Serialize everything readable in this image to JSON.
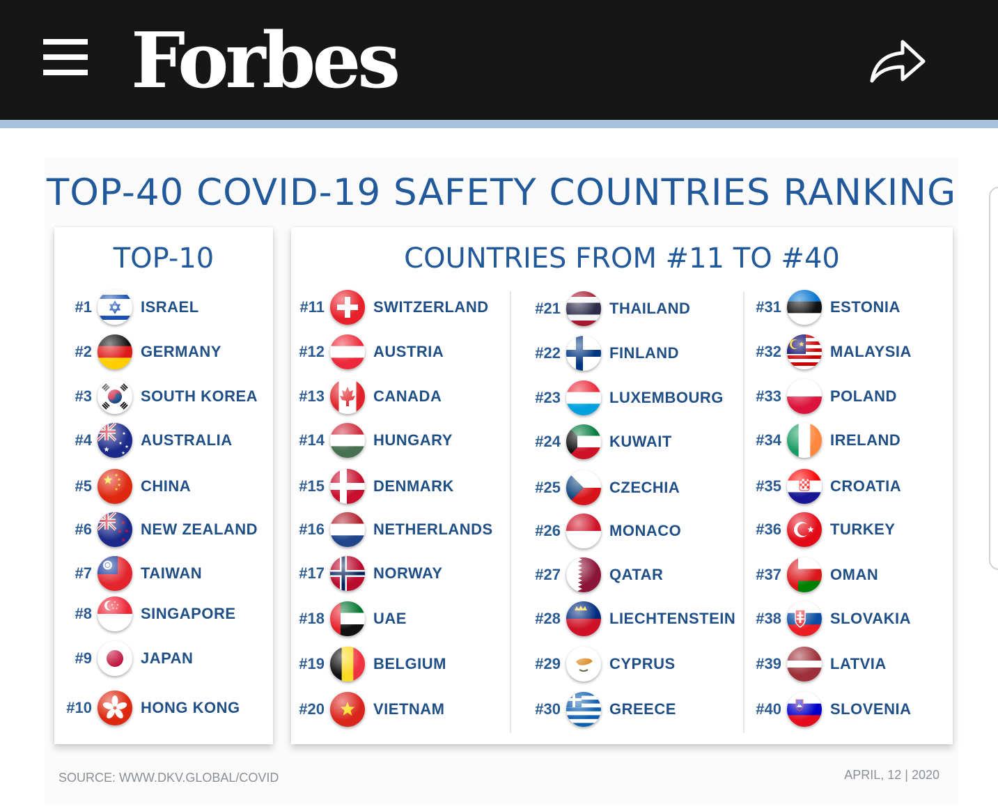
{
  "header": {
    "brand": "Forbes",
    "menu_icon": "hamburger-menu-icon",
    "share_icon": "share-arrow-icon",
    "bg_color": "#161616",
    "accent_color": "#a9c4da"
  },
  "infographic": {
    "title": "TOP-40 COVID-19 SAFETY COUNTRIES RANKING",
    "left_title": "TOP-10",
    "right_title": "COUNTRIES FROM #11 TO #40",
    "source": "SOURCE: WWW.DKV.GLOBAL/COVID",
    "date": "APRIL, 12 | 2020",
    "title_color": "#22599a"
  },
  "countries": [
    {
      "rank": "#1",
      "name": "ISRAEL",
      "flag": "israel"
    },
    {
      "rank": "#2",
      "name": "GERMANY",
      "flag": "germany"
    },
    {
      "rank": "#3",
      "name": "SOUTH KOREA",
      "flag": "south-korea"
    },
    {
      "rank": "#4",
      "name": "AUSTRALIA",
      "flag": "australia"
    },
    {
      "rank": "#5",
      "name": "CHINA",
      "flag": "china"
    },
    {
      "rank": "#6",
      "name": "NEW ZEALAND",
      "flag": "new-zealand"
    },
    {
      "rank": "#7",
      "name": "TAIWAN",
      "flag": "taiwan"
    },
    {
      "rank": "#8",
      "name": "SINGAPORE",
      "flag": "singapore"
    },
    {
      "rank": "#9",
      "name": "JAPAN",
      "flag": "japan"
    },
    {
      "rank": "#10",
      "name": "HONG KONG",
      "flag": "hong-kong"
    },
    {
      "rank": "#11",
      "name": "SWITZERLAND",
      "flag": "switzerland"
    },
    {
      "rank": "#12",
      "name": "AUSTRIA",
      "flag": "austria"
    },
    {
      "rank": "#13",
      "name": "CANADA",
      "flag": "canada"
    },
    {
      "rank": "#14",
      "name": "HUNGARY",
      "flag": "hungary"
    },
    {
      "rank": "#15",
      "name": "DENMARK",
      "flag": "denmark"
    },
    {
      "rank": "#16",
      "name": "NETHERLANDS",
      "flag": "netherlands"
    },
    {
      "rank": "#17",
      "name": "NORWAY",
      "flag": "norway"
    },
    {
      "rank": "#18",
      "name": "UAE",
      "flag": "uae"
    },
    {
      "rank": "#19",
      "name": "BELGIUM",
      "flag": "belgium"
    },
    {
      "rank": "#20",
      "name": "VIETNAM",
      "flag": "vietnam"
    },
    {
      "rank": "#21",
      "name": "THAILAND",
      "flag": "thailand"
    },
    {
      "rank": "#22",
      "name": "FINLAND",
      "flag": "finland"
    },
    {
      "rank": "#23",
      "name": "LUXEMBOURG",
      "flag": "luxembourg"
    },
    {
      "rank": "#24",
      "name": "KUWAIT",
      "flag": "kuwait"
    },
    {
      "rank": "#25",
      "name": "CZECHIA",
      "flag": "czechia"
    },
    {
      "rank": "#26",
      "name": "MONACO",
      "flag": "monaco"
    },
    {
      "rank": "#27",
      "name": "QATAR",
      "flag": "qatar"
    },
    {
      "rank": "#28",
      "name": "LIECHTENSTEIN",
      "flag": "liechtenstein"
    },
    {
      "rank": "#29",
      "name": "CYPRUS",
      "flag": "cyprus"
    },
    {
      "rank": "#30",
      "name": "GREECE",
      "flag": "greece"
    },
    {
      "rank": "#31",
      "name": "ESTONIA",
      "flag": "estonia"
    },
    {
      "rank": "#32",
      "name": "MALAYSIA",
      "flag": "malaysia"
    },
    {
      "rank": "#33",
      "name": "POLAND",
      "flag": "poland"
    },
    {
      "rank": "#34",
      "name": "IRELAND",
      "flag": "ireland"
    },
    {
      "rank": "#35",
      "name": "CROATIA",
      "flag": "croatia"
    },
    {
      "rank": "#36",
      "name": "TURKEY",
      "flag": "turkey"
    },
    {
      "rank": "#37",
      "name": "OMAN",
      "flag": "oman"
    },
    {
      "rank": "#38",
      "name": "SLOVAKIA",
      "flag": "slovakia"
    },
    {
      "rank": "#39",
      "name": "LATVIA",
      "flag": "latvia"
    },
    {
      "rank": "#40",
      "name": "SLOVENIA",
      "flag": "slovenia"
    }
  ]
}
